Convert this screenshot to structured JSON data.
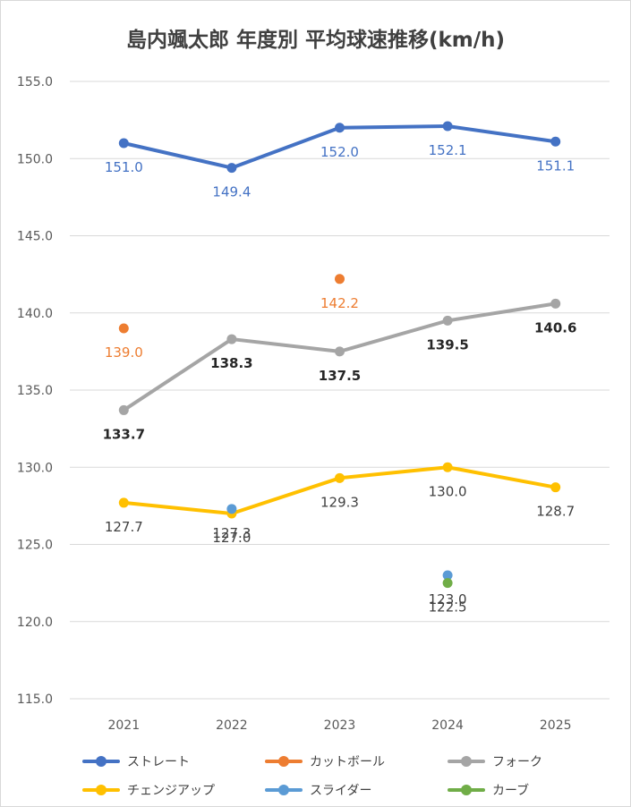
{
  "chart_data": {
    "type": "line",
    "title": "島内颯太郎 年度別 平均球速推移(km/h)",
    "xlabel": "",
    "ylabel": "",
    "categories": [
      "2021",
      "2022",
      "2023",
      "2024",
      "2025"
    ],
    "ylim": [
      115.0,
      155.0
    ],
    "yticks": [
      155.0,
      150.0,
      145.0,
      140.0,
      135.0,
      130.0,
      125.0,
      120.0,
      115.0
    ],
    "grid": true,
    "legend_position": "bottom",
    "series": [
      {
        "name": "ストレート",
        "color": "#4472C4",
        "label_color": "#4472C4",
        "line": true,
        "label_pos": "below",
        "values": [
          151.0,
          149.4,
          152.0,
          152.1,
          151.1
        ],
        "labels": [
          "151.0",
          "149.4",
          "152.0",
          "152.1",
          "151.1"
        ]
      },
      {
        "name": "カットボール",
        "color": "#ED7D31",
        "label_color": "#ED7D31",
        "line": false,
        "label_pos": "below",
        "values": [
          139.0,
          null,
          142.2,
          null,
          null
        ],
        "labels": [
          "139.0",
          null,
          "142.2",
          null,
          null
        ]
      },
      {
        "name": "フォーク",
        "color": "#A5A5A5",
        "label_color": "#262626",
        "label_bold": true,
        "line": true,
        "label_pos": "below",
        "values": [
          133.7,
          138.3,
          137.5,
          139.5,
          140.6
        ],
        "labels": [
          "133.7",
          "138.3",
          "137.5",
          "139.5",
          "140.6"
        ]
      },
      {
        "name": "チェンジアップ",
        "color": "#FFC000",
        "label_color": "#404040",
        "line": true,
        "label_pos": "below",
        "values": [
          127.7,
          127.0,
          129.3,
          130.0,
          128.7
        ],
        "labels": [
          "127.7",
          "127.0",
          "129.3",
          "130.0",
          "128.7"
        ]
      },
      {
        "name": "スライダー",
        "color": "#5B9BD5",
        "label_color": "#404040",
        "line": false,
        "label_pos": "below",
        "values": [
          null,
          127.3,
          null,
          123.0,
          null
        ],
        "labels": [
          null,
          "127.3",
          null,
          "123.0",
          null
        ]
      },
      {
        "name": "カーブ",
        "color": "#70AD47",
        "label_color": "#404040",
        "line": false,
        "label_pos": "below",
        "values": [
          null,
          null,
          null,
          122.5,
          null
        ],
        "labels": [
          null,
          null,
          null,
          "122.5",
          null
        ]
      }
    ]
  }
}
